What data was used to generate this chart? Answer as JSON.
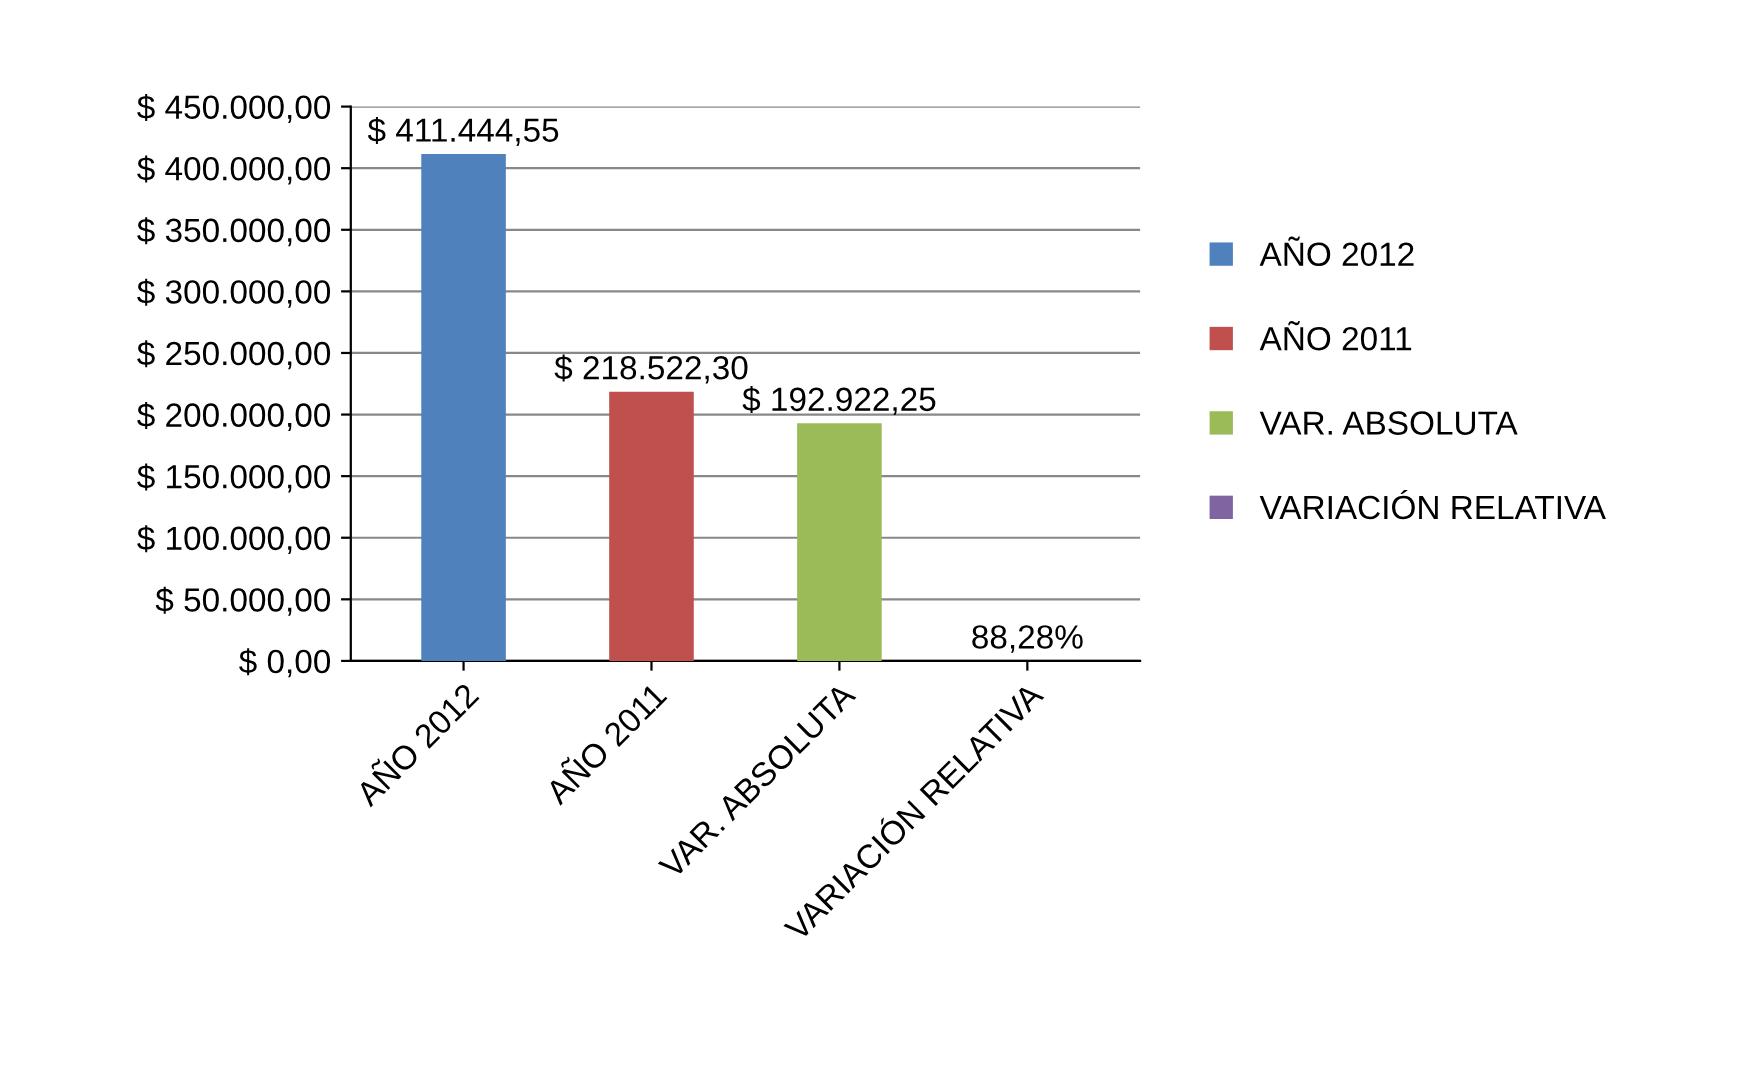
{
  "chart_data": {
    "type": "bar",
    "categories": [
      "AÑO 2012",
      "AÑO 2011",
      "VAR. ABSOLUTA",
      "VARIACIÓN RELATIVA"
    ],
    "series": [
      {
        "name": "AÑO 2012",
        "color": "#4f81bd",
        "values": [
          411444.55,
          null,
          null,
          null
        ],
        "value_labels": [
          "$ 411.444,55",
          null,
          null,
          null
        ]
      },
      {
        "name": "AÑO 2011",
        "color": "#c0504d",
        "values": [
          null,
          218522.3,
          null,
          null
        ],
        "value_labels": [
          null,
          "$ 218.522,30",
          null,
          null
        ]
      },
      {
        "name": "VAR. ABSOLUTA",
        "color": "#9bbb59",
        "values": [
          null,
          null,
          192922.25,
          null
        ],
        "value_labels": [
          null,
          null,
          "$ 192.922,25",
          null
        ]
      },
      {
        "name": "VARIACIÓN RELATIVA",
        "color": "#8064a2",
        "values": [
          null,
          null,
          null,
          0.8828
        ],
        "value_labels": [
          null,
          null,
          null,
          "88,28%"
        ]
      }
    ],
    "ylim": [
      0,
      450000
    ],
    "yticks": [
      {
        "value": 0,
        "label": "$ 0,00"
      },
      {
        "value": 50000,
        "label": "$ 50.000,00"
      },
      {
        "value": 100000,
        "label": "$ 100.000,00"
      },
      {
        "value": 150000,
        "label": "$ 150.000,00"
      },
      {
        "value": 200000,
        "label": "$ 200.000,00"
      },
      {
        "value": 250000,
        "label": "$ 250.000,00"
      },
      {
        "value": 300000,
        "label": "$ 300.000,00"
      },
      {
        "value": 350000,
        "label": "$ 350.000,00"
      },
      {
        "value": 400000,
        "label": "$ 400.000,00"
      },
      {
        "value": 450000,
        "label": "$ 450.000,00"
      }
    ],
    "grid": "y",
    "legend": "right"
  }
}
